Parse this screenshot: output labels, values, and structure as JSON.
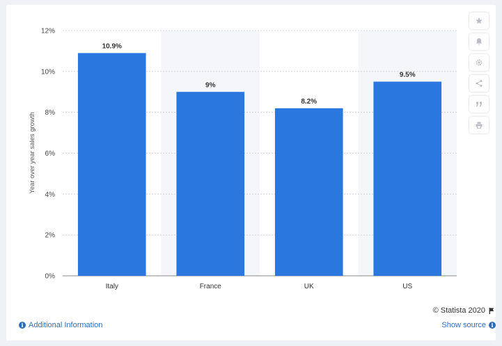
{
  "chart_data": {
    "type": "bar",
    "categories": [
      "Italy",
      "France",
      "UK",
      "US"
    ],
    "values": [
      10.9,
      9,
      8.2,
      9.5
    ],
    "data_labels": [
      "10.9%",
      "9%",
      "8.2%",
      "9.5%"
    ],
    "title": "",
    "xlabel": "",
    "ylabel": "Year over year sales growth",
    "ylim": [
      0,
      12
    ],
    "yticks": [
      0,
      2,
      4,
      6,
      8,
      10,
      12
    ],
    "ytick_labels": [
      "0%",
      "2%",
      "4%",
      "6%",
      "8%",
      "10%",
      "12%"
    ],
    "bar_color": "#2a77e0",
    "grid": true,
    "legend": "none"
  },
  "footer": {
    "additional_info": "Additional Information",
    "show_source": "Show source",
    "copyright": "© Statista 2020"
  },
  "toolbar": {
    "icons": [
      "star-icon",
      "bell-icon",
      "gear-icon",
      "share-icon",
      "quote-icon",
      "print-icon"
    ]
  },
  "colors": {
    "accent": "#2a6ebb",
    "bar": "#2a77e0",
    "alt_band": "#f5f6f9"
  }
}
